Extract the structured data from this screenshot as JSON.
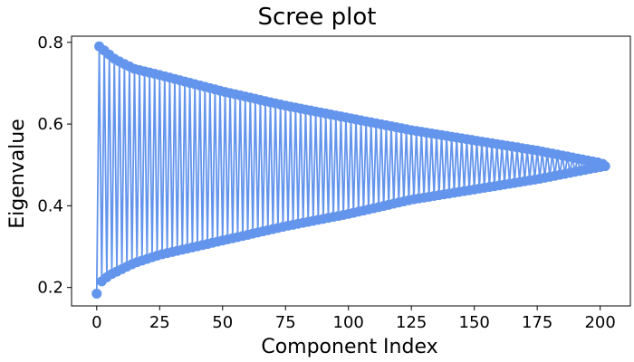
{
  "chart_data": {
    "type": "line",
    "title": "Scree plot",
    "xlabel": "Component Index",
    "ylabel": "Eigenvalue",
    "xlim": [
      -10,
      212
    ],
    "ylim": [
      0.155,
      0.815
    ],
    "xticks": [
      0,
      25,
      50,
      75,
      100,
      125,
      150,
      175,
      200
    ],
    "xtick_labels": [
      "0",
      "25",
      "50",
      "75",
      "100",
      "125",
      "150",
      "175",
      "200"
    ],
    "yticks": [
      0.2,
      0.4,
      0.6,
      0.8
    ],
    "ytick_labels": [
      "0.2",
      "0.4",
      "0.6",
      "0.8"
    ],
    "grid": false,
    "legend": null,
    "colors": {
      "series": "#6495ed"
    },
    "series": [
      {
        "upper_envelope": {
          "x": [
            1,
            7,
            10,
            15,
            25,
            50,
            75,
            100,
            125,
            150,
            175,
            200,
            202
          ],
          "y": [
            0.79,
            0.76,
            0.75,
            0.735,
            0.72,
            0.68,
            0.645,
            0.615,
            0.585,
            0.56,
            0.535,
            0.505,
            0.5
          ]
        },
        "lower_envelope": {
          "x": [
            0,
            2,
            5,
            10,
            15,
            25,
            50,
            75,
            100,
            125,
            150,
            155,
            160,
            175,
            200,
            202
          ],
          "y": [
            0.185,
            0.215,
            0.23,
            0.245,
            0.26,
            0.28,
            0.315,
            0.35,
            0.38,
            0.415,
            0.44,
            0.445,
            0.45,
            0.465,
            0.495,
            0.497
          ]
        },
        "n_points": 203,
        "marker": "circle",
        "note": "points alternate between upper and lower envelopes; evenly spaced on x"
      }
    ]
  }
}
